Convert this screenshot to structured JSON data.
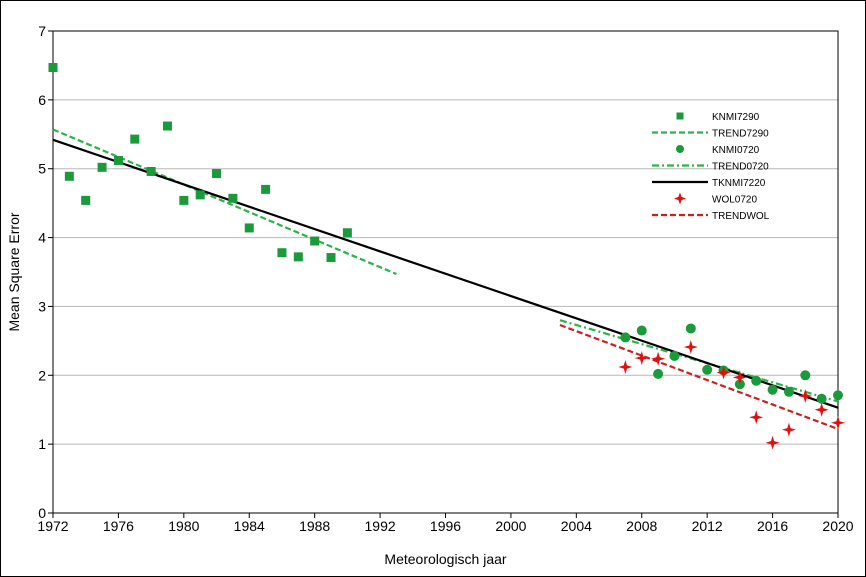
{
  "chart_data": {
    "type": "scatter",
    "title": "",
    "xlabel": "Meteorologisch jaar",
    "ylabel": "Mean Square Error",
    "xlim": [
      1972,
      2020
    ],
    "ylim": [
      0,
      7
    ],
    "x_ticks": [
      "1972",
      "1976",
      "1980",
      "1984",
      "1988",
      "1992",
      "1996",
      "2000",
      "2004",
      "2008",
      "2012",
      "2016",
      "2020"
    ],
    "y_ticks": [
      "0",
      "1",
      "2",
      "3",
      "4",
      "5",
      "6",
      "7"
    ],
    "grid": "horizontal",
    "legend_position": "right",
    "series": [
      {
        "name": "KNMI7290",
        "kind": "points",
        "marker": "square",
        "color": "#1a9a3a",
        "x": [
          1972,
          1973,
          1974,
          1975,
          1976,
          1977,
          1978,
          1979,
          1980,
          1981,
          1982,
          1983,
          1984,
          1985,
          1986,
          1987,
          1988,
          1989,
          1990
        ],
        "y": [
          6.47,
          4.89,
          4.54,
          5.02,
          5.12,
          5.43,
          4.96,
          5.62,
          4.54,
          4.62,
          4.93,
          4.57,
          4.14,
          4.7,
          3.78,
          3.72,
          3.95,
          3.71,
          4.07
        ]
      },
      {
        "name": "TREND7290",
        "kind": "line",
        "style": "dashed",
        "color": "#2bb24a",
        "x": [
          1972,
          1993
        ],
        "y": [
          5.57,
          3.47
        ]
      },
      {
        "name": "KNMI0720",
        "kind": "points",
        "marker": "circle",
        "color": "#1a9a3a",
        "x": [
          2007,
          2008,
          2009,
          2010,
          2011,
          2012,
          2013,
          2014,
          2015,
          2016,
          2017,
          2018,
          2019,
          2020
        ],
        "y": [
          2.55,
          2.65,
          2.02,
          2.28,
          2.68,
          2.08,
          2.07,
          1.87,
          1.92,
          1.79,
          1.76,
          2.0,
          1.66,
          1.71
        ]
      },
      {
        "name": "TREND0720",
        "kind": "line",
        "style": "dashdot",
        "color": "#2bb24a",
        "x": [
          2003,
          2020
        ],
        "y": [
          2.8,
          1.62
        ]
      },
      {
        "name": "TKNMI7220",
        "kind": "line",
        "style": "solid",
        "color": "#000000",
        "x": [
          1972,
          2020
        ],
        "y": [
          5.42,
          1.53
        ]
      },
      {
        "name": "WOL0720",
        "kind": "points",
        "marker": "star",
        "color": "#e01010",
        "x": [
          2007,
          2008,
          2009,
          2011,
          2013,
          2014,
          2015,
          2016,
          2017,
          2018,
          2019,
          2020
        ],
        "y": [
          2.12,
          2.25,
          2.24,
          2.41,
          2.04,
          1.97,
          1.39,
          1.02,
          1.21,
          1.7,
          1.5,
          1.31
        ]
      },
      {
        "name": "TRENDWOL",
        "kind": "line",
        "style": "dashed",
        "color": "#cc2020",
        "x": [
          2003,
          2020
        ],
        "y": [
          2.73,
          1.22
        ]
      }
    ]
  }
}
